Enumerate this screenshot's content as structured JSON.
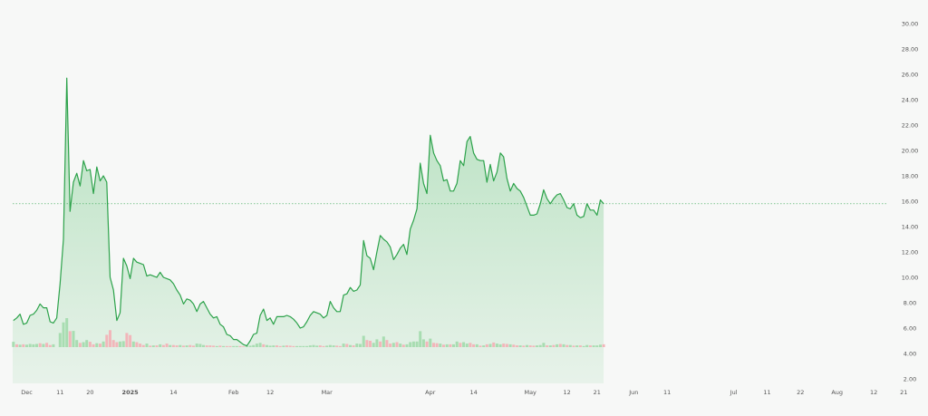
{
  "chart_data": {
    "type": "area",
    "price_axis": {
      "range": [
        2,
        30
      ],
      "ticks": [
        "2.00",
        "4.00",
        "6.00",
        "8.00",
        "10.00",
        "12.00",
        "14.00",
        "16.00",
        "18.00",
        "20.00",
        "22.00",
        "24.00",
        "26.00",
        "28.00",
        "30.00"
      ]
    },
    "time_axis": {
      "ticks": [
        {
          "day": 0,
          "label": "Dec"
        },
        {
          "day": 10,
          "label": "11"
        },
        {
          "day": 19,
          "label": "20"
        },
        {
          "day": 31,
          "label": "2025"
        },
        {
          "day": 44,
          "label": "14"
        },
        {
          "day": 62,
          "label": "Feb"
        },
        {
          "day": 73,
          "label": "12"
        },
        {
          "day": 90,
          "label": "Mar"
        },
        {
          "day": 121,
          "label": "Apr"
        },
        {
          "day": 134,
          "label": "14"
        },
        {
          "day": 151,
          "label": "May"
        },
        {
          "day": 162,
          "label": "12"
        },
        {
          "day": 171,
          "label": "21"
        },
        {
          "day": 182,
          "label": "Jun"
        },
        {
          "day": 192,
          "label": "11"
        },
        {
          "day": 212,
          "label": "Jul"
        },
        {
          "day": 222,
          "label": "11"
        },
        {
          "day": 232,
          "label": "22"
        },
        {
          "day": 243,
          "label": "Aug"
        },
        {
          "day": 254,
          "label": "12"
        },
        {
          "day": 263,
          "label": "21"
        }
      ]
    },
    "reference_line": 15.8,
    "colors": {
      "line": "#2ca24a",
      "volume_up": "#a8ddb1",
      "volume_down": "#f2b6ba",
      "reference": "#3aa655"
    },
    "price_series": [
      [
        -4,
        6.6
      ],
      [
        -3,
        6.8
      ],
      [
        -2,
        7.1
      ],
      [
        -1,
        6.3
      ],
      [
        0,
        6.4
      ],
      [
        1,
        7.0
      ],
      [
        2,
        7.1
      ],
      [
        3,
        7.4
      ],
      [
        4,
        7.9
      ],
      [
        5,
        7.6
      ],
      [
        6,
        7.6
      ],
      [
        7,
        6.5
      ],
      [
        8,
        6.4
      ],
      [
        9,
        6.8
      ],
      [
        10,
        9.5
      ],
      [
        11,
        13.0
      ],
      [
        12,
        25.7
      ],
      [
        13,
        15.2
      ],
      [
        14,
        17.5
      ],
      [
        15,
        18.2
      ],
      [
        16,
        17.2
      ],
      [
        17,
        19.2
      ],
      [
        18,
        18.4
      ],
      [
        19,
        18.5
      ],
      [
        20,
        16.6
      ],
      [
        21,
        18.7
      ],
      [
        22,
        17.6
      ],
      [
        23,
        18.0
      ],
      [
        24,
        17.5
      ],
      [
        25,
        10.0
      ],
      [
        26,
        9.0
      ],
      [
        27,
        6.6
      ],
      [
        28,
        7.2
      ],
      [
        29,
        11.5
      ],
      [
        30,
        10.9
      ],
      [
        31,
        9.9
      ],
      [
        32,
        11.5
      ],
      [
        33,
        11.2
      ],
      [
        34,
        11.1
      ],
      [
        35,
        11.0
      ],
      [
        36,
        10.1
      ],
      [
        37,
        10.2
      ],
      [
        38,
        10.1
      ],
      [
        39,
        10.0
      ],
      [
        40,
        10.4
      ],
      [
        41,
        10.0
      ],
      [
        42,
        9.9
      ],
      [
        43,
        9.8
      ],
      [
        44,
        9.5
      ],
      [
        45,
        9.0
      ],
      [
        46,
        8.6
      ],
      [
        47,
        7.9
      ],
      [
        48,
        8.3
      ],
      [
        49,
        8.2
      ],
      [
        50,
        7.9
      ],
      [
        51,
        7.3
      ],
      [
        52,
        7.9
      ],
      [
        53,
        8.1
      ],
      [
        54,
        7.6
      ],
      [
        55,
        7.1
      ],
      [
        56,
        6.8
      ],
      [
        57,
        6.9
      ],
      [
        58,
        6.3
      ],
      [
        59,
        6.1
      ],
      [
        60,
        5.5
      ],
      [
        61,
        5.4
      ],
      [
        62,
        5.1
      ],
      [
        63,
        5.1
      ],
      [
        64,
        4.9
      ],
      [
        65,
        4.7
      ],
      [
        66,
        4.6
      ],
      [
        67,
        5.0
      ],
      [
        68,
        5.5
      ],
      [
        69,
        5.6
      ],
      [
        70,
        7.0
      ],
      [
        71,
        7.5
      ],
      [
        72,
        6.6
      ],
      [
        73,
        6.8
      ],
      [
        74,
        6.3
      ],
      [
        75,
        6.9
      ],
      [
        76,
        6.9
      ],
      [
        77,
        6.9
      ],
      [
        78,
        7.0
      ],
      [
        79,
        6.9
      ],
      [
        80,
        6.7
      ],
      [
        81,
        6.4
      ],
      [
        82,
        6.0
      ],
      [
        83,
        6.1
      ],
      [
        84,
        6.5
      ],
      [
        85,
        7.0
      ],
      [
        86,
        7.3
      ],
      [
        87,
        7.2
      ],
      [
        88,
        7.1
      ],
      [
        89,
        6.8
      ],
      [
        90,
        7.0
      ],
      [
        91,
        8.1
      ],
      [
        92,
        7.6
      ],
      [
        93,
        7.3
      ],
      [
        94,
        7.3
      ],
      [
        95,
        8.6
      ],
      [
        96,
        8.7
      ],
      [
        97,
        9.2
      ],
      [
        98,
        8.9
      ],
      [
        99,
        9.0
      ],
      [
        100,
        9.4
      ],
      [
        101,
        12.9
      ],
      [
        102,
        11.7
      ],
      [
        103,
        11.5
      ],
      [
        104,
        10.6
      ],
      [
        105,
        12.0
      ],
      [
        106,
        13.3
      ],
      [
        107,
        13.0
      ],
      [
        108,
        12.8
      ],
      [
        109,
        12.4
      ],
      [
        110,
        11.4
      ],
      [
        111,
        11.8
      ],
      [
        112,
        12.3
      ],
      [
        113,
        12.6
      ],
      [
        114,
        11.8
      ],
      [
        115,
        13.8
      ],
      [
        116,
        14.5
      ],
      [
        117,
        15.4
      ],
      [
        118,
        19.0
      ],
      [
        119,
        17.4
      ],
      [
        120,
        16.6
      ],
      [
        121,
        21.2
      ],
      [
        122,
        19.8
      ],
      [
        123,
        19.2
      ],
      [
        124,
        18.8
      ],
      [
        125,
        17.6
      ],
      [
        126,
        17.7
      ],
      [
        127,
        16.8
      ],
      [
        128,
        16.8
      ],
      [
        129,
        17.4
      ],
      [
        130,
        19.2
      ],
      [
        131,
        18.8
      ],
      [
        132,
        20.7
      ],
      [
        133,
        21.1
      ],
      [
        134,
        19.8
      ],
      [
        135,
        19.3
      ],
      [
        136,
        19.2
      ],
      [
        137,
        19.2
      ],
      [
        138,
        17.5
      ],
      [
        139,
        18.9
      ],
      [
        140,
        17.6
      ],
      [
        141,
        18.3
      ],
      [
        142,
        19.8
      ],
      [
        143,
        19.5
      ],
      [
        144,
        17.8
      ],
      [
        145,
        16.8
      ],
      [
        146,
        17.4
      ],
      [
        147,
        17.0
      ],
      [
        148,
        16.8
      ],
      [
        149,
        16.3
      ],
      [
        150,
        15.6
      ],
      [
        151,
        14.9
      ],
      [
        152,
        14.9
      ],
      [
        153,
        15.0
      ],
      [
        154,
        15.8
      ],
      [
        155,
        16.9
      ],
      [
        156,
        16.2
      ],
      [
        157,
        15.8
      ],
      [
        158,
        16.2
      ],
      [
        159,
        16.5
      ],
      [
        160,
        16.6
      ],
      [
        161,
        16.1
      ],
      [
        162,
        15.5
      ],
      [
        163,
        15.4
      ],
      [
        164,
        15.8
      ],
      [
        165,
        14.9
      ],
      [
        166,
        14.7
      ],
      [
        167,
        14.8
      ],
      [
        168,
        15.8
      ],
      [
        169,
        15.3
      ],
      [
        170,
        15.3
      ],
      [
        171,
        14.9
      ],
      [
        172,
        16.1
      ],
      [
        173,
        15.8
      ]
    ],
    "volume_series": [
      [
        -4,
        1.5,
        1
      ],
      [
        -3,
        0.8,
        0
      ],
      [
        -2,
        0.7,
        1
      ],
      [
        -1,
        0.8,
        0
      ],
      [
        0,
        0.7,
        1
      ],
      [
        1,
        0.9,
        1
      ],
      [
        2,
        0.8,
        1
      ],
      [
        3,
        0.9,
        1
      ],
      [
        4,
        1.1,
        0
      ],
      [
        5,
        0.9,
        1
      ],
      [
        6,
        1.2,
        0
      ],
      [
        7,
        0.6,
        0
      ],
      [
        8,
        0.8,
        1
      ],
      [
        10,
        4.0,
        1
      ],
      [
        11,
        7.0,
        1
      ],
      [
        12,
        8.2,
        1
      ],
      [
        13,
        4.5,
        0
      ],
      [
        14,
        4.6,
        1
      ],
      [
        15,
        2.0,
        1
      ],
      [
        16,
        1.2,
        0
      ],
      [
        17,
        1.4,
        1
      ],
      [
        18,
        2.0,
        1
      ],
      [
        19,
        1.5,
        0
      ],
      [
        20,
        0.8,
        0
      ],
      [
        21,
        1.1,
        1
      ],
      [
        22,
        1.0,
        0
      ],
      [
        23,
        1.6,
        1
      ],
      [
        24,
        3.5,
        0
      ],
      [
        25,
        4.8,
        0
      ],
      [
        26,
        2.0,
        0
      ],
      [
        27,
        1.4,
        0
      ],
      [
        28,
        1.6,
        1
      ],
      [
        29,
        1.7,
        1
      ],
      [
        30,
        4.0,
        0
      ],
      [
        31,
        3.4,
        0
      ],
      [
        32,
        1.6,
        1
      ],
      [
        33,
        1.4,
        0
      ],
      [
        34,
        1.0,
        0
      ],
      [
        35,
        0.6,
        0
      ],
      [
        36,
        1.0,
        1
      ],
      [
        37,
        0.4,
        0
      ],
      [
        38,
        0.5,
        1
      ],
      [
        39,
        0.5,
        0
      ],
      [
        40,
        0.8,
        1
      ],
      [
        41,
        0.6,
        0
      ],
      [
        42,
        1.0,
        0
      ],
      [
        43,
        0.6,
        1
      ],
      [
        44,
        0.6,
        0
      ],
      [
        45,
        0.5,
        0
      ],
      [
        46,
        0.6,
        1
      ],
      [
        47,
        0.4,
        0
      ],
      [
        48,
        0.5,
        1
      ],
      [
        49,
        0.6,
        0
      ],
      [
        50,
        0.4,
        0
      ],
      [
        51,
        1.0,
        1
      ],
      [
        52,
        0.9,
        1
      ],
      [
        53,
        0.6,
        1
      ],
      [
        54,
        0.5,
        0
      ],
      [
        55,
        0.5,
        0
      ],
      [
        56,
        0.4,
        0
      ],
      [
        57,
        0.3,
        1
      ],
      [
        58,
        0.4,
        0
      ],
      [
        59,
        0.3,
        1
      ],
      [
        60,
        0.3,
        0
      ],
      [
        61,
        0.3,
        0
      ],
      [
        62,
        0.3,
        1
      ],
      [
        63,
        0.3,
        1
      ],
      [
        64,
        0.3,
        0
      ],
      [
        65,
        0.2,
        0
      ],
      [
        66,
        0.3,
        1
      ],
      [
        67,
        0.4,
        1
      ],
      [
        68,
        0.6,
        1
      ],
      [
        69,
        1.0,
        1
      ],
      [
        70,
        1.2,
        1
      ],
      [
        71,
        0.8,
        0
      ],
      [
        72,
        0.6,
        1
      ],
      [
        73,
        0.4,
        1
      ],
      [
        74,
        0.5,
        1
      ],
      [
        75,
        0.5,
        0
      ],
      [
        76,
        0.3,
        0
      ],
      [
        77,
        0.4,
        1
      ],
      [
        78,
        0.5,
        0
      ],
      [
        79,
        0.4,
        0
      ],
      [
        80,
        0.3,
        0
      ],
      [
        81,
        0.3,
        1
      ],
      [
        82,
        0.3,
        1
      ],
      [
        83,
        0.3,
        1
      ],
      [
        84,
        0.3,
        1
      ],
      [
        85,
        0.5,
        1
      ],
      [
        86,
        0.6,
        1
      ],
      [
        87,
        0.4,
        1
      ],
      [
        88,
        0.5,
        0
      ],
      [
        89,
        0.3,
        0
      ],
      [
        90,
        0.4,
        1
      ],
      [
        91,
        0.6,
        1
      ],
      [
        92,
        0.5,
        1
      ],
      [
        93,
        0.4,
        0
      ],
      [
        94,
        0.3,
        0
      ],
      [
        95,
        1.0,
        1
      ],
      [
        96,
        0.9,
        0
      ],
      [
        97,
        0.6,
        1
      ],
      [
        98,
        0.5,
        0
      ],
      [
        99,
        1.0,
        1
      ],
      [
        100,
        0.9,
        1
      ],
      [
        101,
        3.2,
        1
      ],
      [
        102,
        2.0,
        0
      ],
      [
        103,
        1.8,
        0
      ],
      [
        104,
        1.2,
        1
      ],
      [
        105,
        2.2,
        1
      ],
      [
        106,
        1.6,
        0
      ],
      [
        107,
        3.0,
        1
      ],
      [
        108,
        2.0,
        0
      ],
      [
        109,
        1.0,
        0
      ],
      [
        110,
        1.2,
        1
      ],
      [
        111,
        1.4,
        0
      ],
      [
        112,
        1.0,
        1
      ],
      [
        113,
        0.7,
        0
      ],
      [
        114,
        0.8,
        1
      ],
      [
        115,
        1.4,
        1
      ],
      [
        116,
        1.6,
        1
      ],
      [
        117,
        1.6,
        1
      ],
      [
        118,
        4.5,
        1
      ],
      [
        119,
        2.2,
        1
      ],
      [
        120,
        1.6,
        0
      ],
      [
        121,
        2.4,
        1
      ],
      [
        122,
        1.2,
        0
      ],
      [
        123,
        1.1,
        0
      ],
      [
        124,
        1.0,
        1
      ],
      [
        125,
        0.7,
        0
      ],
      [
        126,
        0.8,
        1
      ],
      [
        127,
        0.8,
        0
      ],
      [
        128,
        0.8,
        1
      ],
      [
        129,
        1.6,
        1
      ],
      [
        130,
        1.2,
        0
      ],
      [
        131,
        1.4,
        1
      ],
      [
        132,
        1.0,
        1
      ],
      [
        133,
        1.2,
        0
      ],
      [
        134,
        0.8,
        0
      ],
      [
        135,
        0.8,
        1
      ],
      [
        136,
        0.4,
        0
      ],
      [
        137,
        0.5,
        1
      ],
      [
        138,
        0.8,
        0
      ],
      [
        139,
        0.9,
        1
      ],
      [
        140,
        1.3,
        0
      ],
      [
        141,
        1.0,
        1
      ],
      [
        142,
        0.8,
        1
      ],
      [
        143,
        1.0,
        0
      ],
      [
        144,
        0.9,
        0
      ],
      [
        145,
        0.8,
        1
      ],
      [
        146,
        0.7,
        0
      ],
      [
        147,
        0.5,
        0
      ],
      [
        148,
        0.5,
        1
      ],
      [
        149,
        0.4,
        0
      ],
      [
        150,
        0.6,
        1
      ],
      [
        151,
        0.5,
        0
      ],
      [
        152,
        0.4,
        0
      ],
      [
        153,
        0.5,
        1
      ],
      [
        154,
        0.6,
        1
      ],
      [
        155,
        1.2,
        1
      ],
      [
        156,
        0.5,
        0
      ],
      [
        157,
        0.5,
        1
      ],
      [
        158,
        0.6,
        0
      ],
      [
        159,
        0.8,
        1
      ],
      [
        160,
        0.9,
        0
      ],
      [
        161,
        0.8,
        1
      ],
      [
        162,
        0.6,
        0
      ],
      [
        163,
        0.6,
        1
      ],
      [
        164,
        0.4,
        0
      ],
      [
        165,
        0.5,
        1
      ],
      [
        166,
        0.5,
        0
      ],
      [
        167,
        0.3,
        1
      ],
      [
        168,
        0.6,
        1
      ],
      [
        169,
        0.5,
        0
      ],
      [
        170,
        0.5,
        1
      ],
      [
        171,
        0.5,
        1
      ],
      [
        172,
        0.7,
        1
      ],
      [
        173,
        0.8,
        0
      ]
    ]
  }
}
